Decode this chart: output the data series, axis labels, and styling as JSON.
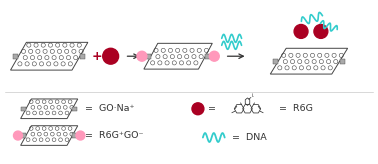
{
  "bg_color": "#ffffff",
  "go_edge_color": "#444444",
  "r6g_color": "#aa0022",
  "pink_color": "#ff99bb",
  "dna_color": "#33cccc",
  "text_color": "#333333",
  "arrow_color": "#333333",
  "go_na_label": "GO·Na⁺",
  "r6ggo_label": "R6G⁺GO⁻",
  "r6g_label": "R6G",
  "dna_label": "DNA"
}
